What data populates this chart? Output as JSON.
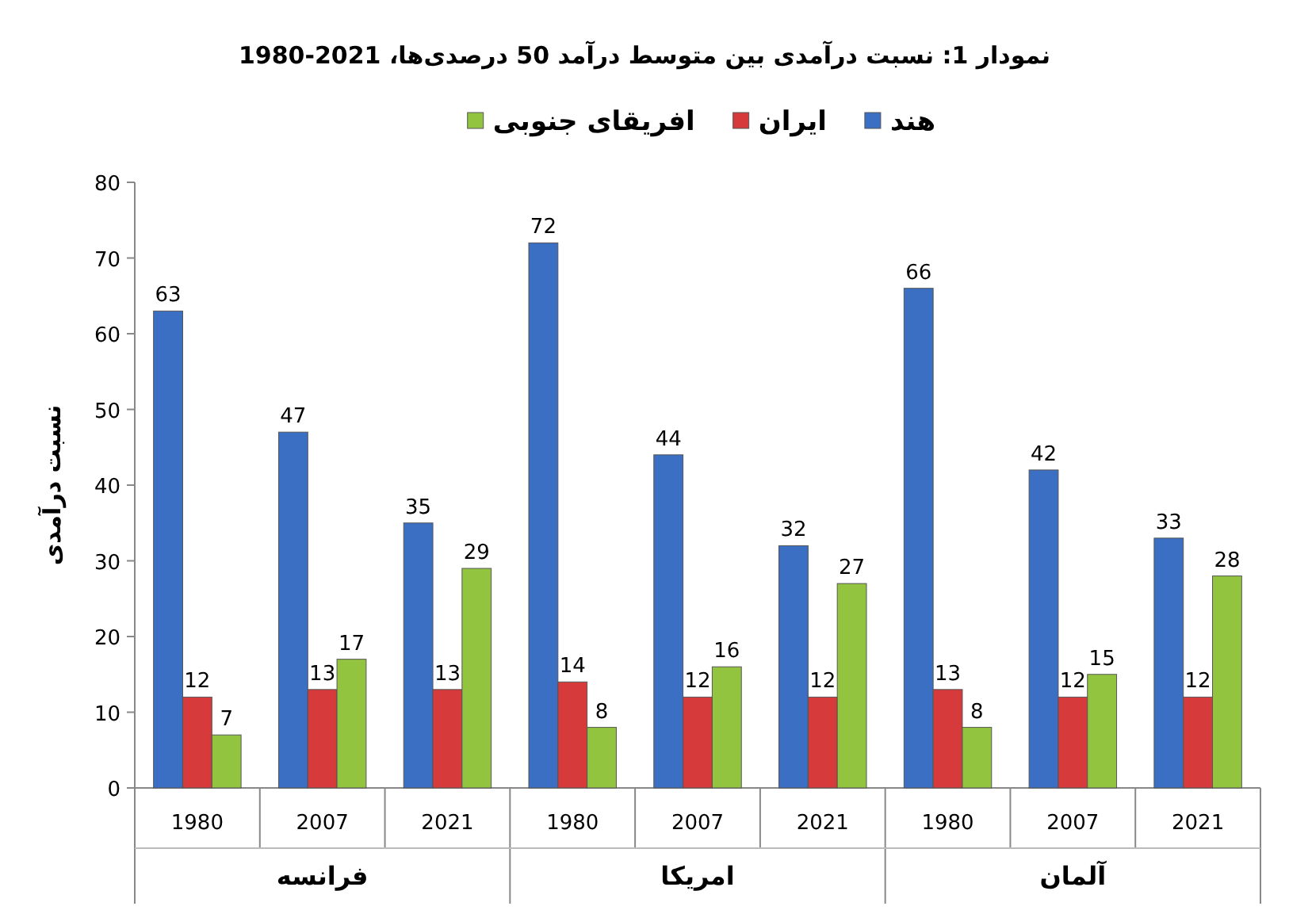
{
  "chart_data": {
    "type": "bar",
    "title": "نمودار 1: نسبت درآمدی بین متوسط درآمد 50 درصدی‌ها، 2021-1980",
    "ylabel": "نسبت درآمدی",
    "categories": [
      "1980",
      "2007",
      "2021",
      "1980",
      "2007",
      "2021",
      "1980",
      "2007",
      "2021"
    ],
    "series": [
      {
        "name": "هند",
        "color": "#3a6fc4",
        "values": [
          63,
          47,
          35,
          72,
          44,
          32,
          66,
          42,
          33
        ]
      },
      {
        "name": "ایران",
        "color": "#d63a3a",
        "values": [
          12,
          13,
          13,
          14,
          12,
          12,
          13,
          12,
          12
        ]
      },
      {
        "name": "افریقای جنوبی",
        "color": "#93c43f",
        "values": [
          7,
          17,
          29,
          8,
          16,
          27,
          8,
          15,
          28
        ]
      }
    ],
    "annotations": [
      "فرانسه",
      "امریکا",
      "آلمان"
    ],
    "ylim": [
      0,
      80
    ],
    "yticks": [
      0,
      10,
      20,
      30,
      40,
      50,
      60,
      70,
      80
    ],
    "data_labels": true,
    "legend": "top",
    "grid": false
  }
}
